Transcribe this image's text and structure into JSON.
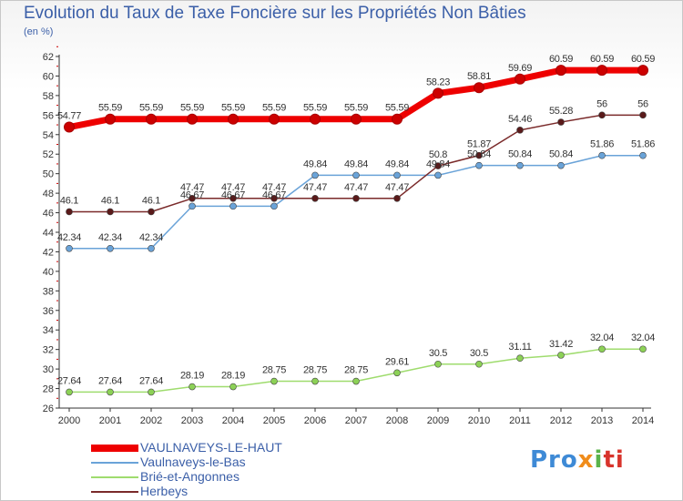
{
  "title": "Evolution du Taux de Taxe Foncière sur les Propriétés Non Bâties",
  "subtitle": "(en %)",
  "logo": {
    "p1": "Pro",
    "p2": "x",
    "p3": "i",
    "p4": "ti"
  },
  "colors": {
    "axis": "#333333",
    "grid_tick": "#cc0000",
    "label": "#333333"
  },
  "chart_data": {
    "type": "line",
    "title": "Evolution du Taux de Taxe Foncière sur les Propriétés Non Bâties",
    "ylabel": "(en %)",
    "xlabel": "",
    "x": [
      "2000",
      "2001",
      "2002",
      "2003",
      "2004",
      "2005",
      "2006",
      "2007",
      "2008",
      "2009",
      "2010",
      "2011",
      "2012",
      "2013",
      "2014"
    ],
    "ylim": [
      26,
      62
    ],
    "yticks": [
      26,
      28,
      30,
      32,
      34,
      36,
      38,
      40,
      42,
      44,
      46,
      48,
      50,
      52,
      54,
      56,
      58,
      60,
      62
    ],
    "legend_position": "bottom-left",
    "series": [
      {
        "name": "VAULNAVEYS-LE-HAUT",
        "color": "#ee0000",
        "marker": "#cc0000",
        "width": 7,
        "values": [
          54.77,
          55.59,
          55.59,
          55.59,
          55.59,
          55.59,
          55.59,
          55.59,
          55.59,
          58.23,
          58.81,
          59.69,
          60.59,
          60.59,
          60.59
        ],
        "labels": [
          "54.77",
          "55.59",
          "55.59",
          "55.59",
          "55.59",
          "55.59",
          "55.59",
          "55.59",
          "55.59",
          "58.23",
          "58.81",
          "59.69",
          "60.59",
          "60.59",
          "60.59"
        ]
      },
      {
        "name": "Vaulnaveys-le-Bas",
        "color": "#6aa3d8",
        "marker": "#6aa3d8",
        "width": 1.5,
        "values": [
          42.34,
          42.34,
          42.34,
          46.67,
          46.67,
          46.67,
          49.84,
          49.84,
          49.84,
          49.84,
          50.84,
          50.84,
          50.84,
          51.86,
          51.86
        ],
        "labels": [
          "42.34",
          "42.34",
          "42.34",
          "46.67",
          "46.67",
          "46.67",
          "49.84",
          "49.84",
          "49.84",
          "49.84",
          "50.84",
          "50.84",
          "50.84",
          "51.86",
          "51.86"
        ]
      },
      {
        "name": "Brié-et-Angonnes",
        "color": "#9fdc6e",
        "marker": "#8cd156",
        "width": 1.5,
        "values": [
          27.64,
          27.64,
          27.64,
          28.19,
          28.19,
          28.75,
          28.75,
          28.75,
          29.61,
          30.5,
          30.5,
          31.11,
          31.42,
          32.04,
          32.04
        ],
        "labels": [
          "27.64",
          "27.64",
          "27.64",
          "28.19",
          "28.19",
          "28.75",
          "28.75",
          "28.75",
          "29.61",
          "30.5",
          "30.5",
          "31.11",
          "31.42",
          "32.04",
          "32.04"
        ]
      },
      {
        "name": "Herbeys",
        "color": "#7a2a2a",
        "marker": "#5a1a1a",
        "width": 1.5,
        "values": [
          46.1,
          46.1,
          46.1,
          47.47,
          47.47,
          47.47,
          47.47,
          47.47,
          47.47,
          50.8,
          51.87,
          54.46,
          55.28,
          56,
          56
        ],
        "labels": [
          "46.1",
          "46.1",
          "46.1",
          "47.47",
          "47.47",
          "47.47",
          "47.47",
          "47.47",
          "47.47",
          "50.8",
          "51.87",
          "54.46",
          "55.28",
          "56",
          "56"
        ]
      }
    ]
  }
}
